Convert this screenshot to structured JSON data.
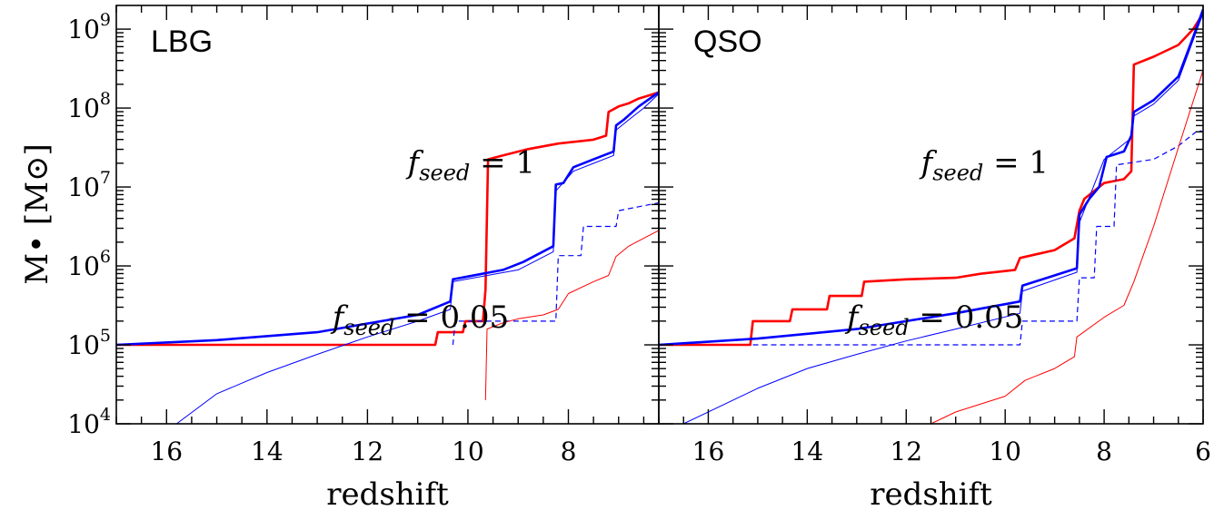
{
  "chart_data": [
    {
      "type": "line",
      "panel_label": "LBG",
      "xlabel": "redshift",
      "ylabel": "M• [M⊙]",
      "xlim": [
        17.0,
        6.2
      ],
      "ylim_log10": [
        4,
        9.3
      ],
      "y_scale": "log",
      "xticks": [
        16,
        14,
        12,
        10,
        8
      ],
      "ytick_labels": [
        {
          "base": "10",
          "exp": "4"
        },
        {
          "base": "10",
          "exp": "5"
        },
        {
          "base": "10",
          "exp": "6"
        },
        {
          "base": "10",
          "exp": "7"
        },
        {
          "base": "10",
          "exp": "8"
        },
        {
          "base": "10",
          "exp": "9"
        }
      ],
      "annotations": [
        {
          "text": "f",
          "sub": "seed",
          "rest": " = 1",
          "x": 11.2,
          "y_log10": 7.18
        },
        {
          "text": "f",
          "sub": "seed",
          "rest": " = 0.05",
          "x": 12.7,
          "y_log10": 5.22
        }
      ],
      "series": [
        {
          "color": "#ff0000",
          "width": 2.6,
          "dash": "none",
          "points": [
            [
              17.0,
              5.0
            ],
            [
              10.65,
              5.0
            ],
            [
              10.6,
              5.16
            ],
            [
              10.1,
              5.16
            ],
            [
              10.05,
              5.3
            ],
            [
              9.7,
              5.3
            ],
            [
              9.65,
              5.7
            ],
            [
              9.6,
              7.35
            ],
            [
              9.3,
              7.4
            ],
            [
              8.8,
              7.48
            ],
            [
              8.2,
              7.55
            ],
            [
              7.5,
              7.6
            ],
            [
              7.25,
              7.65
            ],
            [
              7.2,
              7.95
            ],
            [
              7.0,
              8.02
            ],
            [
              6.8,
              8.06
            ],
            [
              6.6,
              8.12
            ],
            [
              6.4,
              8.16
            ],
            [
              6.2,
              8.2
            ]
          ]
        },
        {
          "color": "#0000ff",
          "width": 2.6,
          "dash": "none",
          "points": [
            [
              17.0,
              5.0
            ],
            [
              15.0,
              5.06
            ],
            [
              13.0,
              5.16
            ],
            [
              11.0,
              5.38
            ],
            [
              10.35,
              5.55
            ],
            [
              10.3,
              5.83
            ],
            [
              9.3,
              5.95
            ],
            [
              8.9,
              6.05
            ],
            [
              8.3,
              6.25
            ],
            [
              8.25,
              7.03
            ],
            [
              8.1,
              7.05
            ],
            [
              7.9,
              7.25
            ],
            [
              7.5,
              7.35
            ],
            [
              7.1,
              7.45
            ],
            [
              7.05,
              7.78
            ],
            [
              6.9,
              7.85
            ],
            [
              6.6,
              8.02
            ],
            [
              6.2,
              8.2
            ]
          ]
        },
        {
          "color": "#0000ff",
          "width": 1.0,
          "dash": "none",
          "points": [
            [
              15.8,
              4.0
            ],
            [
              15.0,
              4.38
            ],
            [
              14.0,
              4.65
            ],
            [
              13.0,
              4.88
            ],
            [
              12.0,
              5.1
            ],
            [
              11.0,
              5.3
            ],
            [
              10.35,
              5.45
            ],
            [
              10.3,
              5.8
            ],
            [
              9.0,
              5.95
            ],
            [
              8.3,
              6.18
            ],
            [
              8.25,
              6.95
            ],
            [
              7.9,
              7.2
            ],
            [
              7.5,
              7.3
            ],
            [
              7.1,
              7.4
            ],
            [
              7.05,
              7.72
            ],
            [
              6.8,
              7.85
            ],
            [
              6.5,
              8.0
            ],
            [
              6.2,
              8.18
            ]
          ]
        },
        {
          "color": "#0000ff",
          "width": 1.2,
          "dash": "6 4",
          "points": [
            [
              10.3,
              5.0
            ],
            [
              10.25,
              5.3
            ],
            [
              8.25,
              5.3
            ],
            [
              8.2,
              6.13
            ],
            [
              7.75,
              6.13
            ],
            [
              7.7,
              6.5
            ],
            [
              7.05,
              6.5
            ],
            [
              7.0,
              6.7
            ],
            [
              6.6,
              6.75
            ],
            [
              6.2,
              6.8
            ]
          ]
        },
        {
          "color": "#ff0000",
          "width": 1.0,
          "dash": "none",
          "points": [
            [
              9.65,
              4.3
            ],
            [
              9.62,
              5.2
            ],
            [
              9.3,
              5.28
            ],
            [
              9.0,
              5.33
            ],
            [
              8.5,
              5.38
            ],
            [
              8.2,
              5.45
            ],
            [
              8.0,
              5.65
            ],
            [
              7.5,
              5.8
            ],
            [
              7.2,
              5.88
            ],
            [
              7.05,
              6.12
            ],
            [
              6.8,
              6.25
            ],
            [
              6.5,
              6.35
            ],
            [
              6.2,
              6.45
            ]
          ]
        }
      ]
    },
    {
      "type": "line",
      "panel_label": "QSO",
      "xlabel": "redshift",
      "xlim": [
        17.0,
        6.0
      ],
      "ylim_log10": [
        4,
        9.3
      ],
      "y_scale": "log",
      "xticks": [
        16,
        14,
        12,
        10,
        8,
        6
      ],
      "annotations": [
        {
          "text": "f",
          "sub": "seed",
          "rest": " = 1",
          "x": 11.7,
          "y_log10": 7.18
        },
        {
          "text": "f",
          "sub": "seed",
          "rest": " = 0.05",
          "x": 13.2,
          "y_log10": 5.22
        }
      ],
      "series": [
        {
          "color": "#ff0000",
          "width": 2.6,
          "dash": "none",
          "points": [
            [
              17.0,
              5.0
            ],
            [
              15.15,
              5.0
            ],
            [
              15.1,
              5.3
            ],
            [
              14.35,
              5.3
            ],
            [
              14.3,
              5.45
            ],
            [
              13.6,
              5.45
            ],
            [
              13.55,
              5.62
            ],
            [
              12.9,
              5.62
            ],
            [
              12.85,
              5.8
            ],
            [
              12.0,
              5.83
            ],
            [
              11.0,
              5.85
            ],
            [
              10.5,
              5.9
            ],
            [
              9.8,
              5.95
            ],
            [
              9.7,
              6.1
            ],
            [
              9.0,
              6.2
            ],
            [
              8.6,
              6.35
            ],
            [
              8.5,
              6.7
            ],
            [
              8.4,
              6.85
            ],
            [
              8.0,
              7.05
            ],
            [
              7.6,
              7.1
            ],
            [
              7.45,
              7.2
            ],
            [
              7.4,
              8.55
            ],
            [
              7.0,
              8.65
            ],
            [
              6.5,
              8.8
            ],
            [
              6.2,
              9.0
            ],
            [
              6.0,
              9.2
            ]
          ]
        },
        {
          "color": "#0000ff",
          "width": 2.6,
          "dash": "none",
          "points": [
            [
              17.0,
              5.0
            ],
            [
              15.0,
              5.08
            ],
            [
              13.0,
              5.2
            ],
            [
              11.0,
              5.4
            ],
            [
              9.7,
              5.55
            ],
            [
              9.65,
              5.75
            ],
            [
              8.55,
              5.97
            ],
            [
              8.5,
              6.65
            ],
            [
              8.3,
              6.85
            ],
            [
              8.1,
              7.0
            ],
            [
              7.95,
              7.38
            ],
            [
              7.6,
              7.45
            ],
            [
              7.45,
              7.65
            ],
            [
              7.4,
              7.95
            ],
            [
              7.0,
              8.1
            ],
            [
              6.5,
              8.4
            ],
            [
              6.2,
              8.9
            ],
            [
              6.0,
              9.25
            ]
          ]
        },
        {
          "color": "#0000ff",
          "width": 1.0,
          "dash": "none",
          "points": [
            [
              16.5,
              4.0
            ],
            [
              15.0,
              4.45
            ],
            [
              14.0,
              4.7
            ],
            [
              13.0,
              4.88
            ],
            [
              12.0,
              5.05
            ],
            [
              11.0,
              5.2
            ],
            [
              9.7,
              5.4
            ],
            [
              9.65,
              5.68
            ],
            [
              8.55,
              5.92
            ],
            [
              8.5,
              6.55
            ],
            [
              8.0,
              7.35
            ],
            [
              7.45,
              7.62
            ],
            [
              7.4,
              7.9
            ],
            [
              7.0,
              8.05
            ],
            [
              6.5,
              8.35
            ],
            [
              6.0,
              9.2
            ]
          ]
        },
        {
          "color": "#0000ff",
          "width": 1.2,
          "dash": "6 4",
          "points": [
            [
              15.1,
              5.0
            ],
            [
              9.7,
              5.0
            ],
            [
              9.65,
              5.3
            ],
            [
              8.55,
              5.3
            ],
            [
              8.5,
              5.85
            ],
            [
              8.2,
              5.85
            ],
            [
              8.15,
              6.5
            ],
            [
              7.8,
              6.5
            ],
            [
              7.75,
              7.28
            ],
            [
              7.0,
              7.35
            ],
            [
              6.5,
              7.52
            ],
            [
              6.1,
              7.72
            ],
            [
              6.0,
              7.7
            ]
          ]
        },
        {
          "color": "#ff0000",
          "width": 1.0,
          "dash": "none",
          "points": [
            [
              11.5,
              4.0
            ],
            [
              11.0,
              4.15
            ],
            [
              10.0,
              4.35
            ],
            [
              9.6,
              4.55
            ],
            [
              9.0,
              4.7
            ],
            [
              8.6,
              4.85
            ],
            [
              8.55,
              5.1
            ],
            [
              8.0,
              5.35
            ],
            [
              7.6,
              5.5
            ],
            [
              7.4,
              5.8
            ],
            [
              7.0,
              6.5
            ],
            [
              6.5,
              7.5
            ],
            [
              6.0,
              8.48
            ]
          ]
        }
      ]
    }
  ]
}
